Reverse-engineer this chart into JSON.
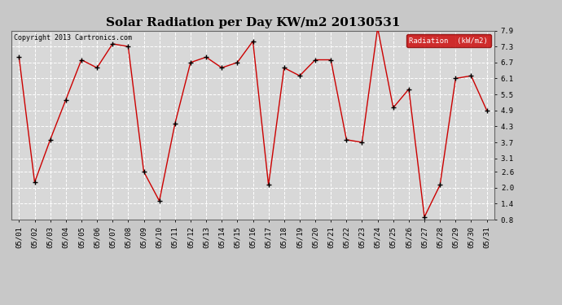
{
  "title": "Solar Radiation per Day KW/m2 20130531",
  "copyright": "Copyright 2013 Cartronics.com",
  "legend_label": "Radiation  (kW/m2)",
  "dates": [
    "05/01",
    "05/02",
    "05/03",
    "05/04",
    "05/05",
    "05/06",
    "05/07",
    "05/08",
    "05/09",
    "05/10",
    "05/11",
    "05/12",
    "05/13",
    "05/14",
    "05/15",
    "05/16",
    "05/17",
    "05/18",
    "05/19",
    "05/20",
    "05/21",
    "05/22",
    "05/23",
    "05/24",
    "05/25",
    "05/26",
    "05/27",
    "05/28",
    "05/29",
    "05/30",
    "05/31"
  ],
  "values": [
    6.9,
    2.2,
    3.8,
    5.3,
    6.8,
    6.5,
    7.4,
    7.3,
    2.6,
    1.5,
    4.4,
    6.7,
    6.9,
    6.5,
    6.7,
    7.5,
    2.1,
    6.5,
    6.2,
    6.8,
    6.8,
    3.8,
    3.7,
    8.0,
    5.0,
    5.7,
    0.9,
    2.1,
    6.1,
    6.2,
    4.9
  ],
  "ylim": [
    0.8,
    7.9
  ],
  "yticks": [
    0.8,
    1.4,
    2.0,
    2.6,
    3.1,
    3.7,
    4.3,
    4.9,
    5.5,
    6.1,
    6.7,
    7.3,
    7.9
  ],
  "line_color": "#cc0000",
  "marker_color": "black",
  "bg_color": "#c8c8c8",
  "plot_bg_color": "#d8d8d8",
  "grid_color": "white",
  "title_fontsize": 11,
  "tick_fontsize": 6.5,
  "copyright_fontsize": 6,
  "legend_bg": "#cc0000",
  "legend_fg": "white",
  "legend_fontsize": 6.5
}
